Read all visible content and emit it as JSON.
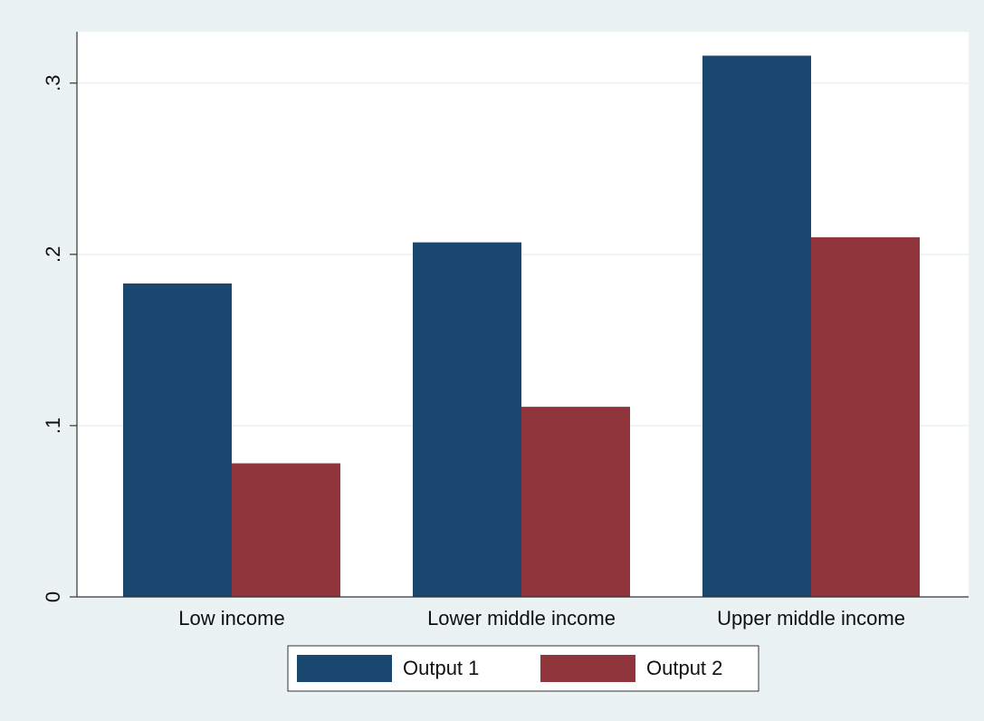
{
  "chart_data": {
    "type": "bar",
    "categories": [
      "Low income",
      "Lower middle income",
      "Upper middle income"
    ],
    "series": [
      {
        "name": "Output 1",
        "color": "#1a476f",
        "values": [
          0.183,
          0.207,
          0.316
        ]
      },
      {
        "name": "Output 2",
        "color": "#90353b",
        "values": [
          0.078,
          0.111,
          0.21
        ]
      }
    ],
    "ylim": [
      0,
      0.33
    ],
    "yticks": [
      0,
      {
        "value": 0.1,
        "label": ".1"
      },
      {
        "value": 0.2,
        "label": ".2"
      },
      {
        "value": 0.3,
        "label": ".3"
      }
    ],
    "grid": true,
    "legend": "bottom"
  }
}
